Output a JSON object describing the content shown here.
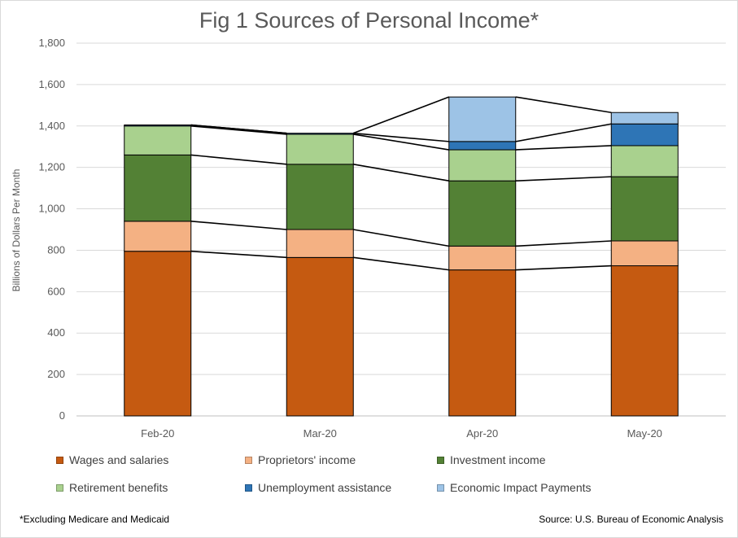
{
  "chart_data": {
    "type": "bar",
    "stacked": true,
    "title": "Fig 1 Sources of Personal Income*",
    "ylabel": "Billions of Dollars Per Month",
    "xlabel": "",
    "ylim": [
      0,
      1800
    ],
    "yticks": [
      "0",
      "200",
      "400",
      "600",
      "800",
      "1,000",
      "1,200",
      "1,400",
      "1,600",
      "1,800"
    ],
    "categories": [
      "Feb-20",
      "Mar-20",
      "Apr-20",
      "May-20"
    ],
    "grid": true,
    "legend_position": "bottom",
    "connector_lines": true,
    "series": [
      {
        "name": "Wages and salaries",
        "color": "#C55A11",
        "values": [
          795,
          765,
          705,
          725
        ]
      },
      {
        "name": "Proprietors' income",
        "color": "#F4B183",
        "values": [
          145,
          135,
          115,
          120
        ]
      },
      {
        "name": "Investment income",
        "color": "#538135",
        "values": [
          320,
          315,
          315,
          310
        ]
      },
      {
        "name": "Retirement benefits",
        "color": "#A9D18E",
        "values": [
          140,
          145,
          150,
          150
        ]
      },
      {
        "name": "Unemployment assistance",
        "color": "#2E75B6",
        "values": [
          5,
          5,
          40,
          105
        ]
      },
      {
        "name": "Economic Impact Payments",
        "color": "#9DC3E6",
        "values": [
          0,
          0,
          215,
          55
        ]
      }
    ]
  },
  "footnote": "*Excluding Medicare and Medicaid",
  "source": "Source: U.S. Bureau of Economic Analysis"
}
